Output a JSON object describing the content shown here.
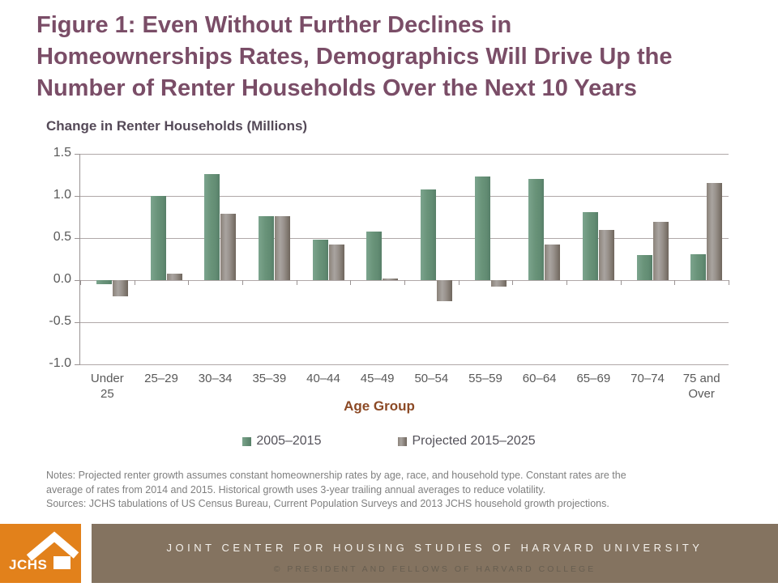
{
  "slide": {
    "title": {
      "line1": "Figure 1: Even Without Further Declines in",
      "line2": "Homeownerships Rates, Demographics Will Drive Up the",
      "line3": "Number of Renter Households Over the Next 10 Years"
    },
    "notes": {
      "line1": "Notes: Projected renter growth assumes constant homeownership rates by age, race, and household type.  Constant rates are the",
      "line2": "average of rates from 2014 and 2015. Historical growth uses 3-year trailing annual averages to reduce volatility.",
      "line3": "Sources: JCHS tabulations of US Census Bureau, Current Population Surveys and 2013 JCHS household growth projections."
    },
    "footer": {
      "logo_text": "JCHS",
      "org_line": "JOINT CENTER FOR HOUSING STUDIES OF HARVARD UNIVERSITY",
      "copyright_line": "© PRESIDENT AND FELLOWS OF HARVARD COLLEGE"
    },
    "colors": {
      "title_plum": "#7a4d67",
      "chart_header": "#554a58",
      "age_group_label": "#8c4a26",
      "series_green": "#699379",
      "series_gray": "#98918b",
      "logo_orange": "#e2811b",
      "footer_brown": "#847360",
      "notes_gray": "#7f7f7f"
    }
  },
  "chart_data": {
    "type": "bar",
    "title": "Change in Renter Households (Millions)",
    "xlabel": "Age Group",
    "ylabel": "",
    "categories": [
      "Under 25",
      "25–29",
      "30–34",
      "35–39",
      "40–44",
      "45–49",
      "50–54",
      "55–59",
      "60–64",
      "65–69",
      "70–74",
      "75 and Over"
    ],
    "series": [
      {
        "name": "2005–2015",
        "values": [
          -0.05,
          1.0,
          1.26,
          0.76,
          0.48,
          0.58,
          1.08,
          1.23,
          1.2,
          0.81,
          0.3,
          0.31
        ]
      },
      {
        "name": "Projected 2015–2025",
        "values": [
          -0.19,
          0.08,
          0.79,
          0.76,
          0.42,
          0.02,
          -0.25,
          -0.08,
          0.42,
          0.6,
          0.69,
          1.15
        ]
      }
    ],
    "ylim": [
      -1.0,
      1.5
    ],
    "yticks": [
      1.5,
      1.0,
      0.5,
      0.0,
      -0.5,
      -1.0
    ],
    "grid": true,
    "legend_position": "bottom"
  }
}
